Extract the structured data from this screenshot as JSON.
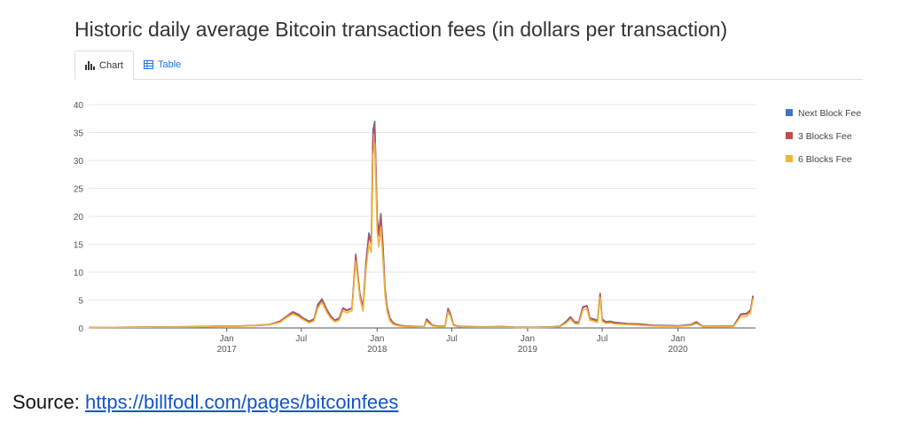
{
  "page": {
    "title": "Historic daily average Bitcoin transaction fees (in dollars per transaction)",
    "tabs": [
      {
        "label": "Chart",
        "icon": "bar-chart-icon",
        "active": true
      },
      {
        "label": "Table",
        "icon": "table-icon",
        "active": false
      }
    ],
    "source_label": "Source:",
    "source_link": "https://billfodl.com/pages/bitcoinfees",
    "colors": {
      "series1": "#4472c4",
      "series2": "#c0504d",
      "series3": "#f0b63c",
      "grid": "#e6e6e6",
      "axis": "#555555"
    }
  },
  "chart_data": {
    "type": "line",
    "title": "Historic daily average Bitcoin transaction fees (in dollars per transaction)",
    "xlabel": "",
    "ylabel": "",
    "xlim": [
      "2016-02-01",
      "2020-07-07"
    ],
    "ylim": [
      0,
      40
    ],
    "y_ticks": [
      0,
      5,
      10,
      15,
      20,
      25,
      30,
      35,
      40
    ],
    "x_ticks": [
      {
        "date": "2017-01-01",
        "label": "Jan",
        "year": "2017"
      },
      {
        "date": "2017-07-01",
        "label": "Jul",
        "year": ""
      },
      {
        "date": "2018-01-01",
        "label": "Jan",
        "year": "2018"
      },
      {
        "date": "2018-07-01",
        "label": "Jul",
        "year": ""
      },
      {
        "date": "2019-01-01",
        "label": "Jan",
        "year": "2019"
      },
      {
        "date": "2019-07-01",
        "label": "Jul",
        "year": ""
      },
      {
        "date": "2020-01-01",
        "label": "Jan",
        "year": "2020"
      }
    ],
    "grid": true,
    "legend_position": "right",
    "x": [
      "2016-02-01",
      "2016-06-01",
      "2016-10-01",
      "2016-12-15",
      "2017-02-01",
      "2017-03-15",
      "2017-04-15",
      "2017-05-10",
      "2017-05-25",
      "2017-06-10",
      "2017-06-25",
      "2017-07-05",
      "2017-07-20",
      "2017-08-01",
      "2017-08-10",
      "2017-08-20",
      "2017-09-01",
      "2017-09-10",
      "2017-09-20",
      "2017-10-01",
      "2017-10-10",
      "2017-10-20",
      "2017-11-01",
      "2017-11-10",
      "2017-11-20",
      "2017-11-28",
      "2017-12-05",
      "2017-12-12",
      "2017-12-18",
      "2017-12-22",
      "2017-12-26",
      "2018-01-01",
      "2018-01-05",
      "2018-01-10",
      "2018-01-15",
      "2018-01-20",
      "2018-01-25",
      "2018-02-01",
      "2018-02-08",
      "2018-02-15",
      "2018-02-25",
      "2018-03-10",
      "2018-03-25",
      "2018-04-10",
      "2018-04-25",
      "2018-05-01",
      "2018-05-05",
      "2018-05-15",
      "2018-06-01",
      "2018-06-15",
      "2018-06-22",
      "2018-06-28",
      "2018-07-05",
      "2018-07-15",
      "2018-08-01",
      "2018-09-01",
      "2018-10-01",
      "2018-11-01",
      "2018-11-15",
      "2018-12-01",
      "2019-01-01",
      "2019-02-01",
      "2019-03-01",
      "2019-03-20",
      "2019-04-05",
      "2019-04-15",
      "2019-04-25",
      "2019-05-05",
      "2019-05-15",
      "2019-05-25",
      "2019-06-01",
      "2019-06-10",
      "2019-06-20",
      "2019-06-26",
      "2019-07-01",
      "2019-07-10",
      "2019-07-20",
      "2019-08-01",
      "2019-09-01",
      "2019-10-01",
      "2019-11-01",
      "2019-12-01",
      "2020-01-01",
      "2020-02-01",
      "2020-02-15",
      "2020-03-01",
      "2020-04-01",
      "2020-05-01",
      "2020-05-15",
      "2020-06-01",
      "2020-06-15",
      "2020-06-25",
      "2020-07-01"
    ],
    "series": [
      {
        "name": "Next Block Fee",
        "color": "#4472c4",
        "values": [
          0.1,
          0.15,
          0.2,
          0.3,
          0.35,
          0.45,
          0.6,
          1.2,
          2.0,
          2.9,
          2.4,
          1.8,
          1.2,
          1.6,
          4.2,
          5.2,
          3.3,
          2.2,
          1.4,
          1.8,
          3.6,
          3.2,
          3.6,
          13.2,
          6.2,
          3.6,
          12.0,
          17.0,
          15.5,
          35.5,
          37.0,
          20.0,
          17.0,
          20.5,
          15.0,
          7.0,
          3.8,
          1.8,
          1.0,
          0.7,
          0.5,
          0.35,
          0.3,
          0.25,
          0.2,
          1.6,
          1.3,
          0.5,
          0.3,
          0.35,
          3.5,
          2.5,
          0.6,
          0.3,
          0.25,
          0.2,
          0.2,
          0.25,
          0.2,
          0.15,
          0.12,
          0.15,
          0.2,
          0.3,
          1.2,
          2.0,
          1.1,
          1.0,
          3.8,
          4.0,
          1.8,
          1.6,
          1.4,
          6.2,
          1.6,
          1.1,
          1.2,
          1.0,
          0.8,
          0.7,
          0.5,
          0.45,
          0.4,
          0.6,
          1.1,
          0.3,
          0.3,
          0.35,
          0.4,
          2.5,
          2.6,
          3.2,
          5.8
        ]
      },
      {
        "name": "3 Blocks Fee",
        "color": "#c0504d",
        "values": [
          0.1,
          0.15,
          0.2,
          0.3,
          0.35,
          0.45,
          0.6,
          1.2,
          2.0,
          2.8,
          2.3,
          1.7,
          1.1,
          1.5,
          4.0,
          5.0,
          3.2,
          2.1,
          1.3,
          1.7,
          3.5,
          3.1,
          3.5,
          13.0,
          6.0,
          3.5,
          11.5,
          16.5,
          15.0,
          34.5,
          36.5,
          19.5,
          16.5,
          20.0,
          14.5,
          6.8,
          3.6,
          1.7,
          0.9,
          0.65,
          0.45,
          0.3,
          0.28,
          0.22,
          0.18,
          1.5,
          1.2,
          0.45,
          0.28,
          0.3,
          3.3,
          2.4,
          0.55,
          0.28,
          0.22,
          0.18,
          0.18,
          0.22,
          0.18,
          0.13,
          0.1,
          0.13,
          0.18,
          0.28,
          1.1,
          1.9,
          1.0,
          0.9,
          3.7,
          3.9,
          1.7,
          1.5,
          1.3,
          6.1,
          1.5,
          1.0,
          1.1,
          0.9,
          0.75,
          0.65,
          0.45,
          0.4,
          0.35,
          0.55,
          1.0,
          0.28,
          0.28,
          0.3,
          0.35,
          2.4,
          2.5,
          3.1,
          5.7
        ]
      },
      {
        "name": "6 Blocks Fee",
        "color": "#f0b63c",
        "values": [
          0.08,
          0.12,
          0.17,
          0.25,
          0.3,
          0.4,
          0.55,
          1.0,
          1.8,
          2.5,
          2.0,
          1.5,
          0.9,
          1.3,
          3.6,
          4.6,
          2.8,
          1.8,
          1.1,
          1.4,
          3.1,
          2.7,
          3.1,
          12.0,
          5.4,
          3.0,
          10.5,
          15.0,
          13.5,
          31.0,
          33.0,
          17.5,
          14.5,
          18.0,
          12.5,
          5.8,
          3.0,
          1.3,
          0.7,
          0.5,
          0.35,
          0.25,
          0.22,
          0.18,
          0.14,
          1.2,
          0.9,
          0.35,
          0.22,
          0.25,
          2.9,
          2.0,
          0.45,
          0.22,
          0.18,
          0.14,
          0.14,
          0.18,
          0.14,
          0.1,
          0.08,
          0.1,
          0.14,
          0.22,
          0.9,
          1.6,
          0.8,
          0.7,
          3.2,
          3.4,
          1.4,
          1.2,
          1.0,
          5.5,
          1.2,
          0.8,
          0.9,
          0.7,
          0.6,
          0.5,
          0.35,
          0.3,
          0.28,
          0.45,
          0.8,
          0.22,
          0.22,
          0.25,
          0.28,
          2.0,
          2.1,
          2.7,
          5.2
        ]
      }
    ]
  }
}
